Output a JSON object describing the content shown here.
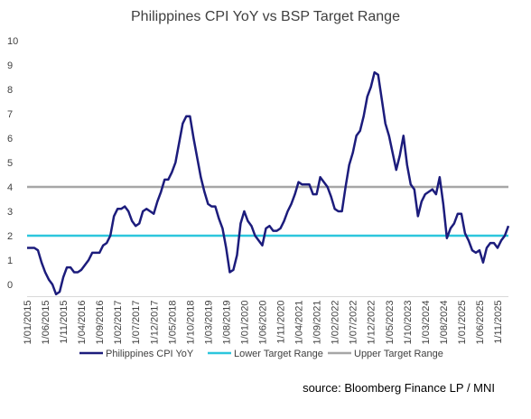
{
  "chart_data": {
    "type": "line",
    "title": "Philippines CPI YoY  vs BSP Target Range",
    "source": "source: Bloomberg Finance LP /  MNI",
    "categories": [
      "1/01/2015",
      null,
      null,
      null,
      null,
      "1/06/2015",
      null,
      null,
      null,
      null,
      "1/11/2015",
      null,
      null,
      null,
      null,
      "1/04/2016",
      null,
      null,
      null,
      null,
      "1/09/2016",
      null,
      null,
      null,
      null,
      "1/02/2017",
      null,
      null,
      null,
      null,
      "1/07/2017",
      null,
      null,
      null,
      null,
      "1/12/2017",
      null,
      null,
      null,
      null,
      "1/05/2018",
      null,
      null,
      null,
      null,
      "1/10/2018",
      null,
      null,
      null,
      null,
      "1/03/2019",
      null,
      null,
      null,
      null,
      "1/08/2019",
      null,
      null,
      null,
      null,
      "1/01/2020",
      null,
      null,
      null,
      null,
      "1/06/2020",
      null,
      null,
      null,
      null,
      "1/11/2020",
      null,
      null,
      null,
      null,
      "1/04/2021",
      null,
      null,
      null,
      null,
      "1/09/2021",
      null,
      null,
      null,
      null,
      "1/02/2022",
      null,
      null,
      null,
      null,
      "1/07/2022",
      null,
      null,
      null,
      null,
      "1/12/2022",
      null,
      null,
      null,
      null,
      "1/05/2023",
      null,
      null,
      null,
      null,
      "1/10/2023",
      null,
      null,
      null,
      null,
      "1/03/2024",
      null,
      null,
      null,
      null,
      "1/08/2024",
      null,
      null,
      null,
      null,
      "1/01/2025",
      null,
      null,
      null,
      null,
      "1/06/2025",
      null,
      null,
      null,
      null,
      "1/11/2025",
      null,
      null,
      null
    ],
    "series": [
      {
        "name": "Philippines CPI YoY",
        "color": "#1c1c7c",
        "values": [
          1.5,
          1.5,
          1.5,
          1.4,
          0.9,
          0.5,
          0.2,
          0.0,
          -0.4,
          -0.3,
          0.3,
          0.7,
          0.7,
          0.5,
          0.5,
          0.6,
          0.8,
          1.0,
          1.3,
          1.3,
          1.3,
          1.6,
          1.7,
          2.0,
          2.8,
          3.1,
          3.1,
          3.2,
          3.0,
          2.6,
          2.4,
          2.5,
          3.0,
          3.1,
          3.0,
          2.9,
          3.4,
          3.8,
          4.3,
          4.3,
          4.6,
          5.0,
          5.8,
          6.6,
          6.9,
          6.9,
          6.0,
          5.2,
          4.4,
          3.8,
          3.3,
          3.2,
          3.2,
          2.7,
          2.3,
          1.5,
          0.5,
          0.6,
          1.2,
          2.5,
          3.0,
          2.6,
          2.4,
          2.0,
          1.8,
          1.6,
          2.3,
          2.4,
          2.2,
          2.2,
          2.3,
          2.6,
          3.0,
          3.3,
          3.7,
          4.2,
          4.1,
          4.1,
          4.1,
          3.7,
          3.7,
          4.4,
          4.2,
          4.0,
          3.6,
          3.1,
          3.0,
          3.0,
          4.0,
          4.9,
          5.4,
          6.1,
          6.3,
          6.9,
          7.7,
          8.1,
          8.7,
          8.6,
          7.6,
          6.6,
          6.1,
          5.4,
          4.7,
          5.3,
          6.1,
          4.9,
          4.1,
          3.9,
          2.8,
          3.4,
          3.7,
          3.8,
          3.9,
          3.7,
          4.4,
          3.3,
          1.9,
          2.3,
          2.5,
          2.9,
          2.9,
          2.1,
          1.8,
          1.4,
          1.3,
          1.4,
          0.9,
          1.5,
          1.7,
          1.7,
          1.5,
          1.8,
          2.0,
          2.4
        ]
      }
    ],
    "reference_lines": [
      {
        "name": "Lower Target Range",
        "value": 2,
        "color": "#2cc6dd"
      },
      {
        "name": "Upper Target Range",
        "value": 4,
        "color": "#a6a6a6"
      }
    ],
    "ylim": [
      -0.5,
      10
    ],
    "yticks": [
      0,
      1,
      2,
      3,
      4,
      5,
      6,
      7,
      8,
      9,
      10
    ]
  }
}
